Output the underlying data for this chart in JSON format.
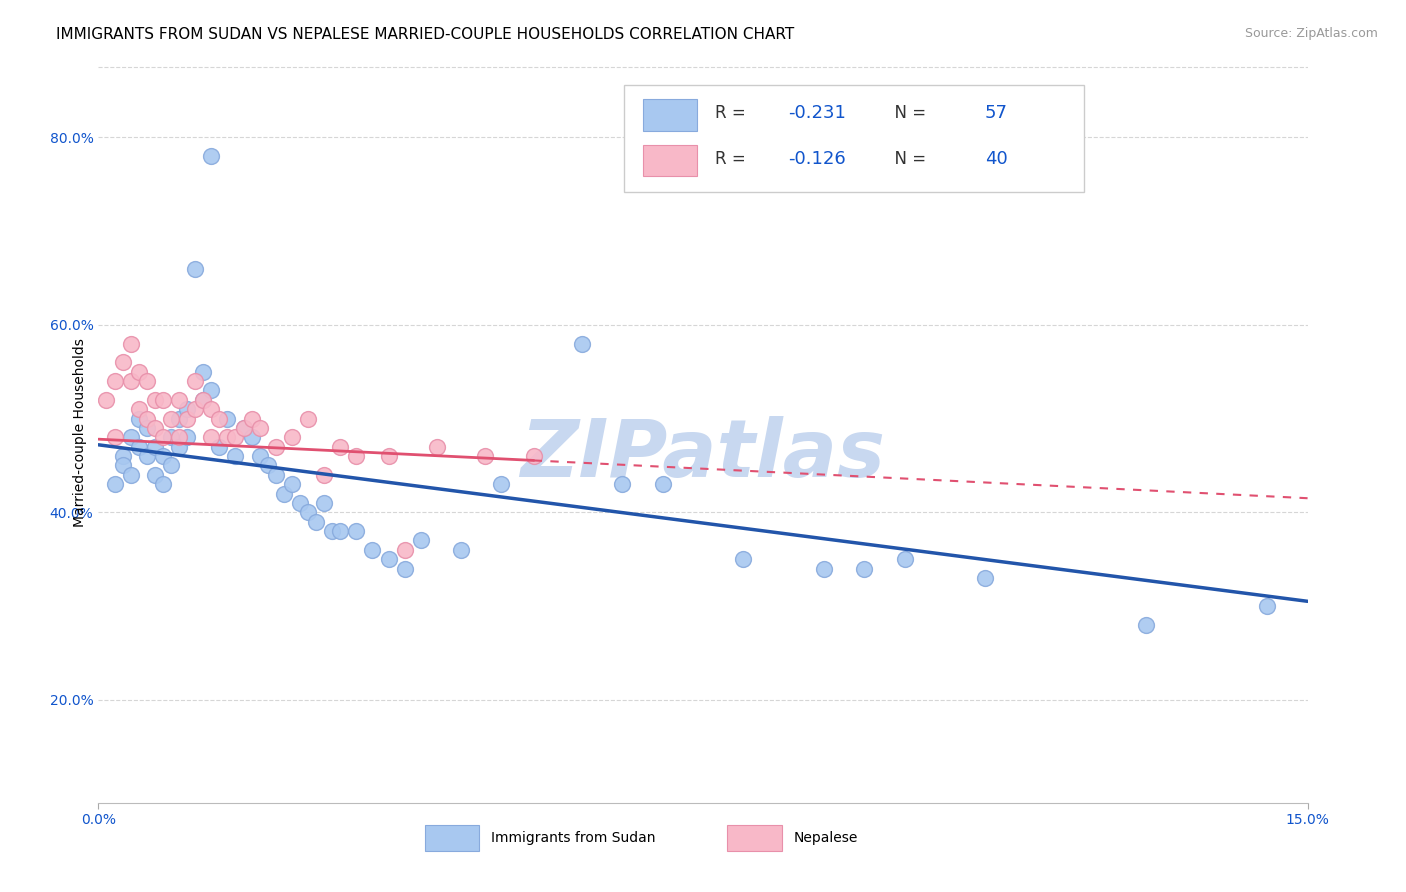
{
  "title": "IMMIGRANTS FROM SUDAN VS NEPALESE MARRIED-COUPLE HOUSEHOLDS CORRELATION CHART",
  "source": "Source: ZipAtlas.com",
  "xlabel_blue": "Immigrants from Sudan",
  "xlabel_pink": "Nepalese",
  "ylabel": "Married-couple Households",
  "xlim": [
    0.0,
    0.15
  ],
  "ylim": [
    0.09,
    0.88
  ],
  "yticks": [
    0.2,
    0.4,
    0.6,
    0.8
  ],
  "ytick_labels": [
    "20.0%",
    "40.0%",
    "60.0%",
    "80.0%"
  ],
  "r_blue": "-0.231",
  "n_blue": "57",
  "r_pink": "-0.126",
  "n_pink": "40",
  "blue_color": "#A8C8F0",
  "blue_edge_color": "#88AADD",
  "pink_color": "#F8B8C8",
  "pink_edge_color": "#E890AA",
  "trend_blue_color": "#2255AA",
  "trend_pink_color": "#E05070",
  "legend_value_color": "#1155CC",
  "grid_color": "#CCCCCC",
  "background_color": "#FFFFFF",
  "watermark": "ZIPatlas",
  "watermark_color": "#C8D8F0",
  "title_fontsize": 11,
  "axis_label_fontsize": 10,
  "tick_fontsize": 10,
  "marker_size": 130,
  "blue_scatter_x": [
    0.014,
    0.002,
    0.003,
    0.003,
    0.004,
    0.004,
    0.005,
    0.005,
    0.006,
    0.006,
    0.007,
    0.007,
    0.008,
    0.008,
    0.009,
    0.009,
    0.01,
    0.01,
    0.011,
    0.011,
    0.012,
    0.013,
    0.013,
    0.014,
    0.015,
    0.016,
    0.017,
    0.018,
    0.019,
    0.02,
    0.021,
    0.022,
    0.023,
    0.024,
    0.025,
    0.026,
    0.027,
    0.028,
    0.029,
    0.03,
    0.032,
    0.034,
    0.036,
    0.038,
    0.04,
    0.045,
    0.05,
    0.06,
    0.065,
    0.07,
    0.08,
    0.09,
    0.095,
    0.1,
    0.11,
    0.13,
    0.145
  ],
  "blue_scatter_y": [
    0.78,
    0.43,
    0.46,
    0.45,
    0.48,
    0.44,
    0.5,
    0.47,
    0.49,
    0.46,
    0.47,
    0.44,
    0.46,
    0.43,
    0.48,
    0.45,
    0.5,
    0.47,
    0.51,
    0.48,
    0.66,
    0.55,
    0.52,
    0.53,
    0.47,
    0.5,
    0.46,
    0.49,
    0.48,
    0.46,
    0.45,
    0.44,
    0.42,
    0.43,
    0.41,
    0.4,
    0.39,
    0.41,
    0.38,
    0.38,
    0.38,
    0.36,
    0.35,
    0.34,
    0.37,
    0.36,
    0.43,
    0.58,
    0.43,
    0.43,
    0.35,
    0.34,
    0.34,
    0.35,
    0.33,
    0.28,
    0.3
  ],
  "pink_scatter_x": [
    0.001,
    0.002,
    0.002,
    0.003,
    0.004,
    0.004,
    0.005,
    0.005,
    0.006,
    0.006,
    0.007,
    0.007,
    0.008,
    0.008,
    0.009,
    0.01,
    0.01,
    0.011,
    0.012,
    0.012,
    0.013,
    0.014,
    0.014,
    0.015,
    0.016,
    0.017,
    0.018,
    0.019,
    0.02,
    0.022,
    0.024,
    0.026,
    0.028,
    0.03,
    0.032,
    0.036,
    0.038,
    0.042,
    0.048,
    0.054
  ],
  "pink_scatter_y": [
    0.52,
    0.54,
    0.48,
    0.56,
    0.58,
    0.54,
    0.55,
    0.51,
    0.54,
    0.5,
    0.52,
    0.49,
    0.52,
    0.48,
    0.5,
    0.52,
    0.48,
    0.5,
    0.54,
    0.51,
    0.52,
    0.51,
    0.48,
    0.5,
    0.48,
    0.48,
    0.49,
    0.5,
    0.49,
    0.47,
    0.48,
    0.5,
    0.44,
    0.47,
    0.46,
    0.46,
    0.36,
    0.47,
    0.46,
    0.46
  ],
  "blue_trend_x0": 0.0,
  "blue_trend_y0": 0.472,
  "blue_trend_x1": 0.15,
  "blue_trend_y1": 0.305,
  "pink_trend_x0": 0.0,
  "pink_trend_y0": 0.478,
  "pink_trend_x1": 0.15,
  "pink_trend_y1": 0.415
}
